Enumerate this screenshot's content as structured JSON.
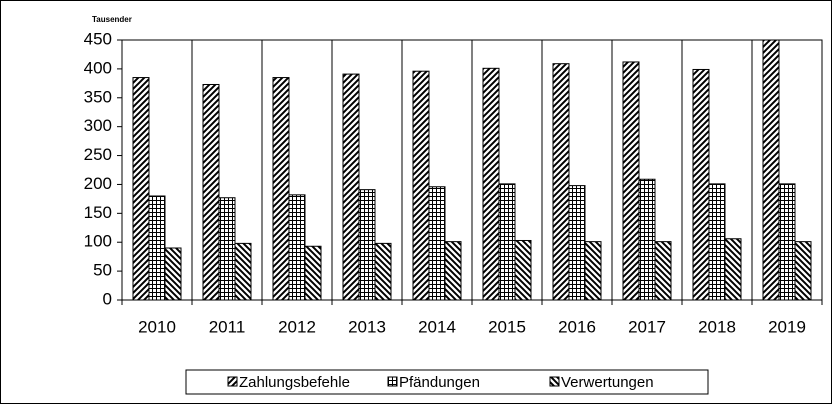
{
  "chart_data": {
    "type": "bar",
    "y_axis_unit": "Tausender",
    "categories": [
      "2010",
      "2011",
      "2012",
      "2013",
      "2014",
      "2015",
      "2016",
      "2017",
      "2018",
      "2019"
    ],
    "series": [
      {
        "name": "Zahlungsbefehle",
        "color": "#000000",
        "hatch": "forward-diagonal",
        "values": [
          385,
          373,
          385,
          391,
          396,
          401,
          409,
          412,
          399,
          450
        ]
      },
      {
        "name": "Pfändungen",
        "color": "#000000",
        "hatch": "grid",
        "values": [
          180,
          177,
          182,
          191,
          196,
          201,
          198,
          209,
          201,
          201
        ]
      },
      {
        "name": "Verwertungen",
        "color": "#000000",
        "hatch": "backward-diagonal",
        "values": [
          90,
          98,
          93,
          98,
          101,
          103,
          101,
          101,
          106,
          101
        ]
      }
    ],
    "ylim": [
      0,
      450
    ],
    "yticks": [
      0,
      50,
      100,
      150,
      200,
      250,
      300,
      350,
      400,
      450
    ],
    "legend": "bottom"
  }
}
